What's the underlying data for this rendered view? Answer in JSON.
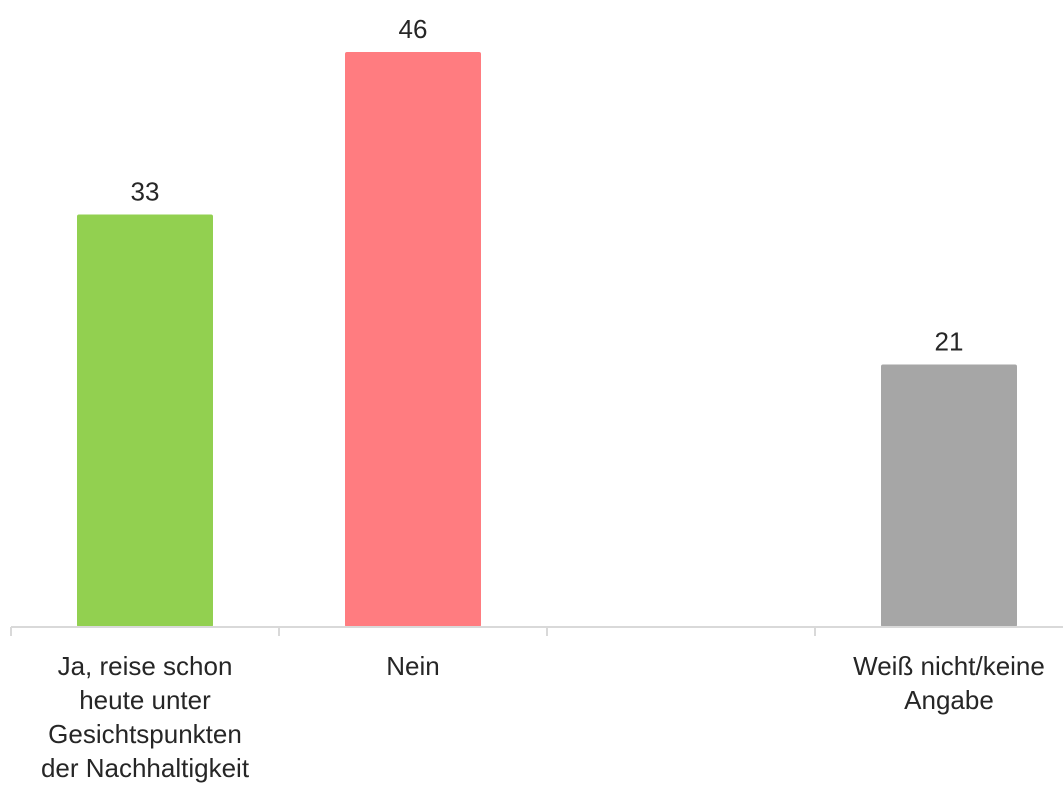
{
  "chart_data": {
    "type": "bar",
    "categories": [
      "Ja, reise schon heute unter Gesichtspunkten der Nachhaltigkeit",
      "Nein",
      "",
      "Weiß nicht/keine Angabe"
    ],
    "category_lines": [
      [
        "Ja, reise schon",
        "heute unter",
        "Gesichtspunkten",
        "der Nachhaltigkeit"
      ],
      [
        "Nein"
      ],
      [],
      [
        "Weiß nicht/keine",
        "Angabe"
      ]
    ],
    "values": [
      33,
      46,
      null,
      21
    ],
    "value_labels": [
      "33",
      "46",
      "",
      "21"
    ],
    "colors": [
      "#92d050",
      "#ff7c80",
      "",
      "#a6a6a6"
    ],
    "ylim": [
      0,
      50
    ],
    "grid": false,
    "legend": "none",
    "axis_color": "#d9d9d9"
  }
}
